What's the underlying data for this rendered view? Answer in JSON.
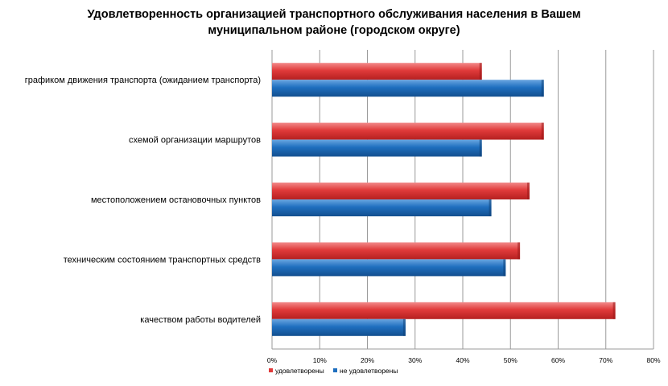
{
  "chart_data": {
    "type": "bar",
    "orientation": "horizontal",
    "title_lines": [
      "Удовлетворенность организацией транспортного обслуживания населения в Вашем",
      "муниципальном районе (городском округе)"
    ],
    "categories": [
      "графиком движения транспорта (ожиданием транспорта)",
      "схемой организации маршрутов",
      "местоположением остановочных пунктов",
      "техническим состоянием транспортных средств",
      "качеством работы водителей"
    ],
    "series": [
      {
        "name": "удовлетворены",
        "color": "#e03a3a",
        "values": [
          44,
          57,
          54,
          52,
          72
        ]
      },
      {
        "name": "не удовлетворены",
        "color": "#1f6fbf",
        "values": [
          57,
          44,
          46,
          49,
          28
        ]
      }
    ],
    "xlim": [
      0,
      80
    ],
    "xticks": [
      "0%",
      "10%",
      "20%",
      "30%",
      "40%",
      "50%",
      "60%",
      "70%",
      "80%"
    ],
    "grid": true,
    "legend_position": "bottom-left"
  }
}
